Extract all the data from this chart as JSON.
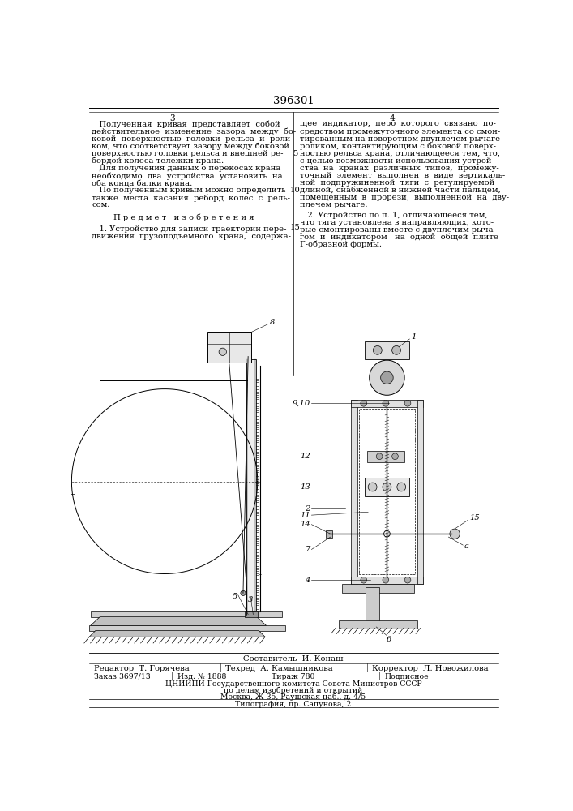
{
  "title": "396301",
  "page_bg": "#ffffff",
  "col_left_num": "3",
  "col_right_num": "4",
  "left_text": [
    "   Полученная  кривая  представляет  собой",
    "действительное  изменение  зазора  между  бо-",
    "ковой  поверхностью  головки  рельса  и  роли-",
    "ком, что соответствует зазору между боковой",
    "поверхностью головки рельса и внешней ре-",
    "бордой колеса тележки крана.",
    "   Для получения данных о перекосах крана",
    "необходимо  два  устройства  установить  на",
    "оба конца балки крана.",
    "   По полученным кривым можно определить",
    "также  места  касания  реборд  колес  с  рель-",
    "сом."
  ],
  "section_header": "П р е д м е т   и з о б р е т е н и я",
  "left_text2": [
    "   1. Устройство для записи траектории пере-",
    "движения  грузоподъемного  крана,  содержа-"
  ],
  "right_text": [
    "щее  индикатор,  перо  которого  связано  по-",
    "средством промежуточного элемента со смон-",
    "тированным на поворотном двуплечем рычаге",
    "роликом, контактирующим с боковой поверх-",
    "ностью рельса крана, отличающееся тем, что,",
    "с целью возможности использования устрой-",
    "ства  на  кранах  различных  типов,  промежу-",
    "точный  элемент  выполнен  в  виде  вертикаль-",
    "ной  подпружиненной  тяги  с  регулируемой",
    "длиной, снабженной в нижней части пальцем,",
    "помещенным  в  прорези,  выполненной  на  дву-",
    "плечем рычаге."
  ],
  "right_text2": [
    "   2. Устройство по п. 1, отличающееся тем,",
    "что тяга установлена в направляющих, кото-",
    "рые смонтированы вместе с двуплечим рыча-",
    "гом  и  индикатором   на  одной  общей  плите",
    "Г-образной формы."
  ],
  "bottom_composer": "Составитель  И. Конаш",
  "bottom_editor": "Редактор  Т. Горячева",
  "bottom_tech": "Техред  А. Камышникова",
  "bottom_corrector": "Корректор  Л. Новожилова",
  "bottom_order": "Заказ 3697/13",
  "bottom_pub": "Изд. № 1888",
  "bottom_copies": "Тираж 780",
  "bottom_signed": "Подписное",
  "bottom_institute": "ЦНИИПИ Государственного комитета Совета Министров СССР",
  "bottom_institute2": "по делам изобретений и открытий",
  "bottom_address": "Москва, Ж-35, Раушская наб., д. 4/5",
  "bottom_printer": "Типография, пр. Сапунова, 2",
  "font_size_body": 7.2,
  "font_size_title": 9.5,
  "text_color": "#000000"
}
